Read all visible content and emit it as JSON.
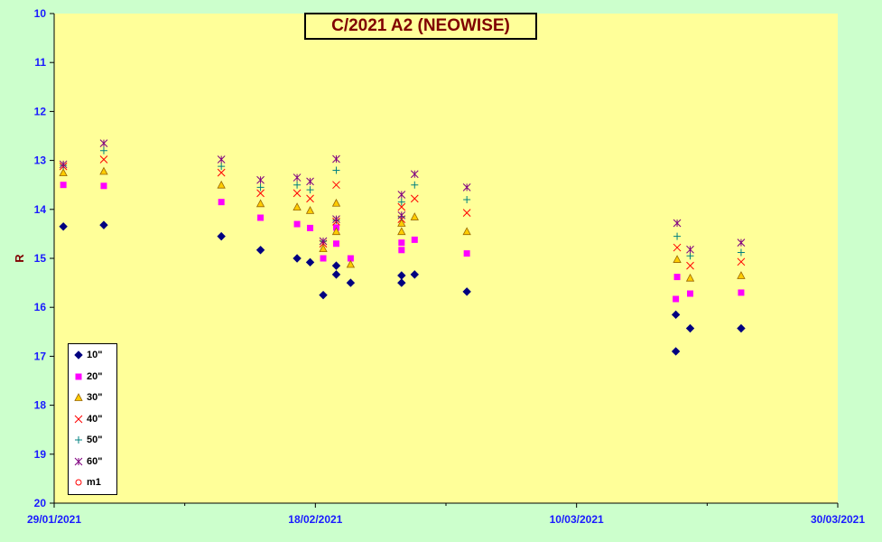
{
  "chart_data": {
    "type": "scatter",
    "title": "C/2021 A2 (NEOWISE)",
    "xlabel": "",
    "ylabel": "R",
    "ylim": [
      10,
      20
    ],
    "y_inverted": true,
    "y_ticks": [
      "10",
      "11",
      "12",
      "13",
      "14",
      "15",
      "16",
      "17",
      "18",
      "19",
      "20"
    ],
    "xlim": [
      "2021-01-29",
      "2021-03-30"
    ],
    "x_ticks": [
      "29/01/2021",
      "18/02/2021",
      "10/03/2021",
      "30/03/2021"
    ],
    "grid": false,
    "legend_position": "bottom-left",
    "colors": {
      "plot_bg": "#ffff99",
      "page_bg": "#ccffcc",
      "axis_text": "#1a1aff",
      "title_text": "#800000"
    },
    "series": [
      {
        "name": "10\"",
        "marker": "diamond",
        "color": "#000080",
        "x": [
          29.7,
          32.8,
          41.8,
          44.8,
          47.6,
          48.6,
          49.6,
          50.6,
          50.6,
          51.7,
          55.6,
          55.6,
          56.6,
          60.6,
          76.6,
          76.6,
          77.7,
          81.6
        ],
        "y": [
          14.35,
          14.32,
          14.55,
          14.83,
          15.0,
          15.08,
          15.75,
          15.33,
          15.15,
          15.5,
          15.35,
          15.5,
          15.33,
          15.68,
          16.9,
          16.15,
          16.43,
          16.43
        ]
      },
      {
        "name": "20\"",
        "marker": "square",
        "color": "#ff00ff",
        "x": [
          29.7,
          32.8,
          41.8,
          44.8,
          47.6,
          48.6,
          49.6,
          50.6,
          50.6,
          51.7,
          55.6,
          55.6,
          56.6,
          60.6,
          76.6,
          76.7,
          77.7,
          81.6
        ],
        "y": [
          13.5,
          13.52,
          13.85,
          14.17,
          14.3,
          14.38,
          15.0,
          14.7,
          14.37,
          15.0,
          14.68,
          14.83,
          14.62,
          14.9,
          15.83,
          15.38,
          15.72,
          15.7
        ]
      },
      {
        "name": "30\"",
        "marker": "triangle",
        "color": "#ffaa00",
        "x": [
          29.7,
          32.8,
          41.8,
          44.8,
          47.6,
          48.6,
          49.6,
          50.6,
          50.6,
          51.7,
          55.6,
          55.6,
          56.6,
          60.6,
          76.7,
          77.7,
          81.6
        ],
        "y": [
          13.25,
          13.22,
          13.5,
          13.88,
          13.95,
          14.02,
          14.8,
          14.45,
          13.87,
          15.12,
          14.28,
          14.45,
          14.15,
          14.45,
          15.02,
          15.4,
          15.35
        ]
      },
      {
        "name": "40\"",
        "marker": "x",
        "color": "#ff0000",
        "x": [
          29.7,
          32.8,
          41.8,
          44.8,
          47.6,
          48.6,
          49.6,
          50.6,
          50.6,
          55.6,
          55.6,
          56.6,
          60.6,
          76.7,
          77.7,
          81.6
        ],
        "y": [
          13.12,
          12.98,
          13.25,
          13.67,
          13.67,
          13.78,
          14.7,
          14.25,
          13.5,
          14.2,
          13.95,
          13.78,
          14.07,
          14.78,
          15.15,
          15.07
        ]
      },
      {
        "name": "50\"",
        "marker": "plus",
        "color": "#008080",
        "x": [
          29.7,
          32.8,
          41.8,
          44.8,
          47.6,
          48.6,
          49.6,
          50.6,
          50.6,
          55.6,
          55.6,
          56.6,
          60.6,
          76.7,
          77.7,
          81.6
        ],
        "y": [
          13.1,
          12.8,
          13.12,
          13.55,
          13.5,
          13.6,
          14.65,
          14.22,
          13.2,
          14.15,
          13.85,
          13.5,
          13.8,
          14.55,
          14.95,
          14.88
        ]
      },
      {
        "name": "60\"",
        "marker": "star",
        "color": "#800080",
        "x": [
          29.7,
          32.8,
          41.8,
          44.8,
          47.6,
          48.6,
          49.6,
          50.6,
          50.6,
          55.6,
          55.6,
          56.6,
          60.6,
          76.7,
          77.7,
          81.6
        ],
        "y": [
          13.08,
          12.65,
          12.98,
          13.4,
          13.35,
          13.43,
          14.65,
          14.2,
          12.97,
          14.12,
          13.7,
          13.28,
          13.55,
          14.28,
          14.82,
          14.68
        ]
      },
      {
        "name": "m1",
        "marker": "circle",
        "color": "#ff0000",
        "x": [],
        "y": []
      }
    ]
  }
}
